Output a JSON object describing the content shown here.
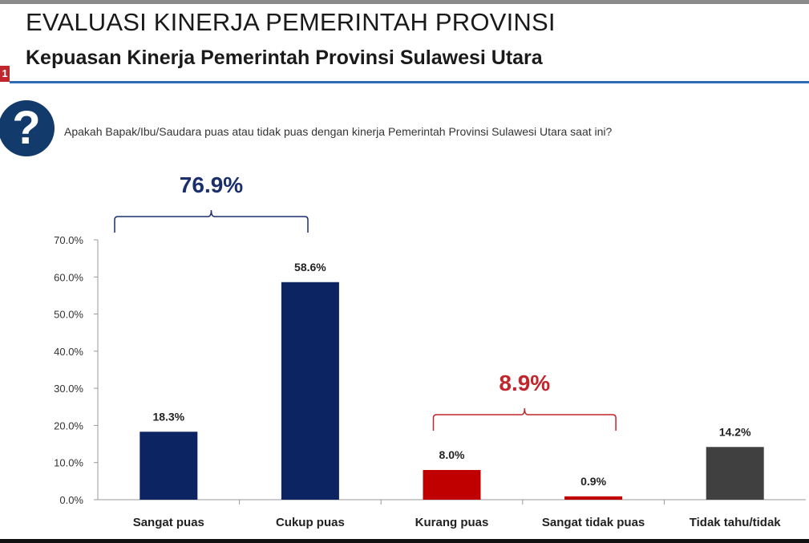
{
  "header": {
    "title": "EVALUASI KINERJA PEMERINTAH PROVINSI",
    "subtitle": "Kepuasan Kinerja Pemerintah Provinsi Sulawesi Utara",
    "badge": "1"
  },
  "question": {
    "icon": "question-mark-icon",
    "icon_glyph": "?",
    "text": "Apakah Bapak/Ibu/Saudara puas atau tidak puas dengan kinerja Pemerintah Provinsi Sulawesi Utara saat ini?"
  },
  "colors": {
    "navy": "#0c2461",
    "red": "#c00000",
    "gray": "#404040",
    "bracket_blue": "#4a6a9a",
    "bracket_red": "#c0262b"
  },
  "chart_data": {
    "type": "bar",
    "title": "",
    "xlabel": "",
    "ylabel": "",
    "ylim": [
      0,
      70
    ],
    "yticks": [
      "0.0%",
      "10.0%",
      "20.0%",
      "30.0%",
      "40.0%",
      "50.0%",
      "60.0%",
      "70.0%"
    ],
    "categories": [
      "Sangat puas",
      "Cukup puas",
      "Kurang puas",
      "Sangat tidak puas",
      "Tidak tahu/tidak"
    ],
    "values": [
      18.3,
      58.6,
      8.0,
      0.9,
      14.2
    ],
    "value_labels": [
      "18.3%",
      "58.6%",
      "8.0%",
      "0.9%",
      "14.2%"
    ],
    "bar_colors": [
      "#0c2461",
      "#0c2461",
      "#c00000",
      "#c00000",
      "#404040"
    ],
    "grid": false,
    "annotations": [
      {
        "text": "76.9%",
        "spans": [
          0,
          1
        ],
        "color": "#1b2f6b"
      },
      {
        "text": "8.9%",
        "spans": [
          2,
          3
        ],
        "color": "#c0262b"
      }
    ]
  }
}
